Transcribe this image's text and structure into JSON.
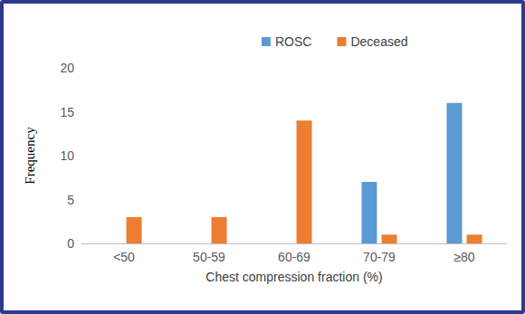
{
  "chart_data": {
    "type": "bar",
    "x_label": "Chest compression fraction (%)",
    "y_label": "Frequency",
    "categories": [
      "<50",
      "50-59",
      "60-69",
      "70-79",
      "≥80"
    ],
    "series": [
      {
        "name": "ROSC",
        "color": "#5b9bd5",
        "values": [
          0,
          0,
          0,
          7,
          16
        ]
      },
      {
        "name": "Deceased",
        "color": "#ed7d31",
        "values": [
          3,
          3,
          14,
          1,
          1
        ]
      }
    ],
    "ylim": [
      0,
      20
    ],
    "yticks": [
      0,
      5,
      10,
      15,
      20
    ],
    "grid": false,
    "legend": "top"
  }
}
